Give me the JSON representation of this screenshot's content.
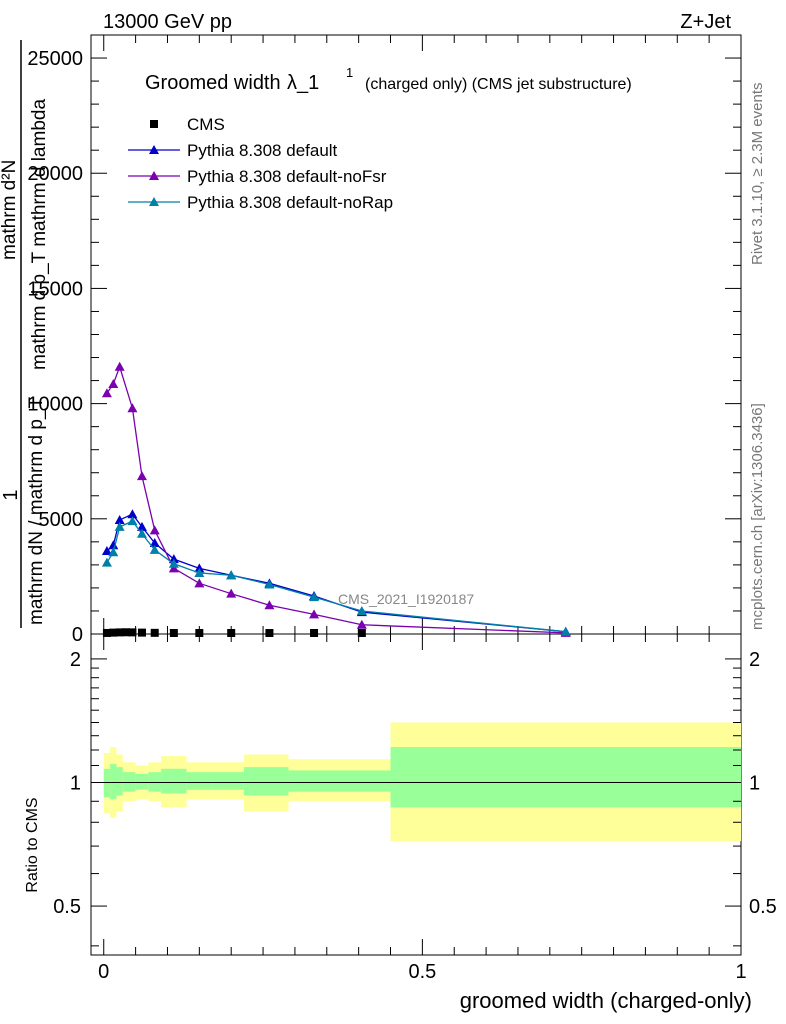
{
  "header": {
    "energy_label": "13000 GeV pp",
    "process_label": "Z+Jet"
  },
  "side_labels": {
    "rivet": "Rivet 3.1.10, ≥ 2.3M events",
    "mcplots": "mcplots.cern.ch [arXiv:1306.3436]"
  },
  "watermark": "CMS_2021_I1920187",
  "top_ylabel": {
    "one": "1",
    "numerator": "mathrm d²N",
    "denominator": "mathrm d p_T mathrm d lambda",
    "lower": "mathrm dN / mathrm d p_T"
  },
  "chart_data": [
    {
      "type": "line",
      "title": "Groomed width λ_1¹ (charged only) (CMS jet substructure)",
      "title_parts": {
        "main": "Groomed width",
        "lambda": "λ_1",
        "sup": "1",
        "rest": "(charged only) (CMS jet substructure)"
      },
      "xlim": [
        -0.02,
        1.0
      ],
      "ylim": [
        0,
        26000
      ],
      "y_ticks": [
        0,
        5000,
        10000,
        15000,
        20000,
        25000
      ],
      "y_tick_labels": [
        "0",
        "5000",
        "10000",
        "15000",
        "20000",
        "25000"
      ],
      "legend_position": "top-left",
      "series": [
        {
          "name": "CMS",
          "color": "#000000",
          "marker": "square",
          "x": [
            0.005,
            0.015,
            0.025,
            0.035,
            0.045,
            0.06,
            0.08,
            0.11,
            0.15,
            0.2,
            0.26,
            0.33,
            0.405
          ],
          "y": [
            45,
            60,
            70,
            75,
            70,
            60,
            50,
            40,
            30,
            22,
            14,
            8,
            3
          ]
        },
        {
          "name": "Pythia 8.308 default",
          "color": "#0000cc",
          "marker": "triangle",
          "x": [
            0.005,
            0.015,
            0.025,
            0.045,
            0.06,
            0.08,
            0.11,
            0.15,
            0.2,
            0.26,
            0.33,
            0.405,
            0.725
          ],
          "y": [
            3600,
            3850,
            4950,
            5200,
            4650,
            3950,
            3250,
            2850,
            2550,
            2200,
            1650,
            950,
            100
          ]
        },
        {
          "name": "Pythia 8.308 default-noFsr",
          "color": "#7a00b0",
          "marker": "triangle",
          "x": [
            0.005,
            0.015,
            0.025,
            0.045,
            0.06,
            0.08,
            0.11,
            0.15,
            0.2,
            0.26,
            0.33,
            0.405,
            0.725
          ],
          "y": [
            10450,
            10850,
            11600,
            9800,
            6850,
            4500,
            2850,
            2200,
            1750,
            1250,
            850,
            400,
            50
          ]
        },
        {
          "name": "Pythia 8.308 default-noRap",
          "color": "#0080a8",
          "marker": "triangle",
          "x": [
            0.005,
            0.015,
            0.025,
            0.045,
            0.06,
            0.08,
            0.11,
            0.15,
            0.2,
            0.26,
            0.33,
            0.405,
            0.725
          ],
          "y": [
            3100,
            3550,
            4650,
            4900,
            4350,
            3650,
            3050,
            2650,
            2550,
            2150,
            1600,
            1000,
            100
          ]
        }
      ]
    },
    {
      "type": "area",
      "ylabel": "Ratio to CMS",
      "xlabel": "groomed width (charged-only)",
      "xlim": [
        -0.02,
        1.0
      ],
      "ylim": [
        0.38,
        2.3
      ],
      "y_ticks": [
        0.5,
        1,
        2
      ],
      "y_tick_labels": [
        "0.5",
        "1",
        "2"
      ],
      "x_ticks": [
        0,
        0.5,
        1
      ],
      "x_tick_labels": [
        "0",
        "0.5",
        "1"
      ],
      "reference_line": 1,
      "bins": [
        {
          "lo": 0.0,
          "hi": 0.01,
          "stat_lo": 0.92,
          "stat_hi": 1.08,
          "tot_lo": 0.84,
          "tot_hi": 1.18
        },
        {
          "lo": 0.01,
          "hi": 0.02,
          "stat_lo": 0.91,
          "stat_hi": 1.11,
          "tot_lo": 0.82,
          "tot_hi": 1.22
        },
        {
          "lo": 0.02,
          "hi": 0.03,
          "stat_lo": 0.93,
          "stat_hi": 1.09,
          "tot_lo": 0.85,
          "tot_hi": 1.17
        },
        {
          "lo": 0.03,
          "hi": 0.05,
          "stat_lo": 0.95,
          "stat_hi": 1.06,
          "tot_lo": 0.9,
          "tot_hi": 1.12
        },
        {
          "lo": 0.05,
          "hi": 0.07,
          "stat_lo": 0.96,
          "stat_hi": 1.05,
          "tot_lo": 0.91,
          "tot_hi": 1.1
        },
        {
          "lo": 0.07,
          "hi": 0.09,
          "stat_lo": 0.95,
          "stat_hi": 1.06,
          "tot_lo": 0.9,
          "tot_hi": 1.12
        },
        {
          "lo": 0.09,
          "hi": 0.13,
          "stat_lo": 0.94,
          "stat_hi": 1.08,
          "tot_lo": 0.87,
          "tot_hi": 1.16
        },
        {
          "lo": 0.13,
          "hi": 0.17,
          "stat_lo": 0.96,
          "stat_hi": 1.06,
          "tot_lo": 0.91,
          "tot_hi": 1.12
        },
        {
          "lo": 0.17,
          "hi": 0.22,
          "stat_lo": 0.96,
          "stat_hi": 1.06,
          "tot_lo": 0.91,
          "tot_hi": 1.12
        },
        {
          "lo": 0.22,
          "hi": 0.29,
          "stat_lo": 0.93,
          "stat_hi": 1.09,
          "tot_lo": 0.85,
          "tot_hi": 1.17
        },
        {
          "lo": 0.29,
          "hi": 0.45,
          "stat_lo": 0.95,
          "stat_hi": 1.07,
          "tot_lo": 0.9,
          "tot_hi": 1.14
        },
        {
          "lo": 0.45,
          "hi": 1.0,
          "stat_lo": 0.87,
          "stat_hi": 1.22,
          "tot_lo": 0.72,
          "tot_hi": 1.4
        }
      ],
      "colors": {
        "stat": "#99ff99",
        "total": "#ffff99"
      }
    }
  ]
}
